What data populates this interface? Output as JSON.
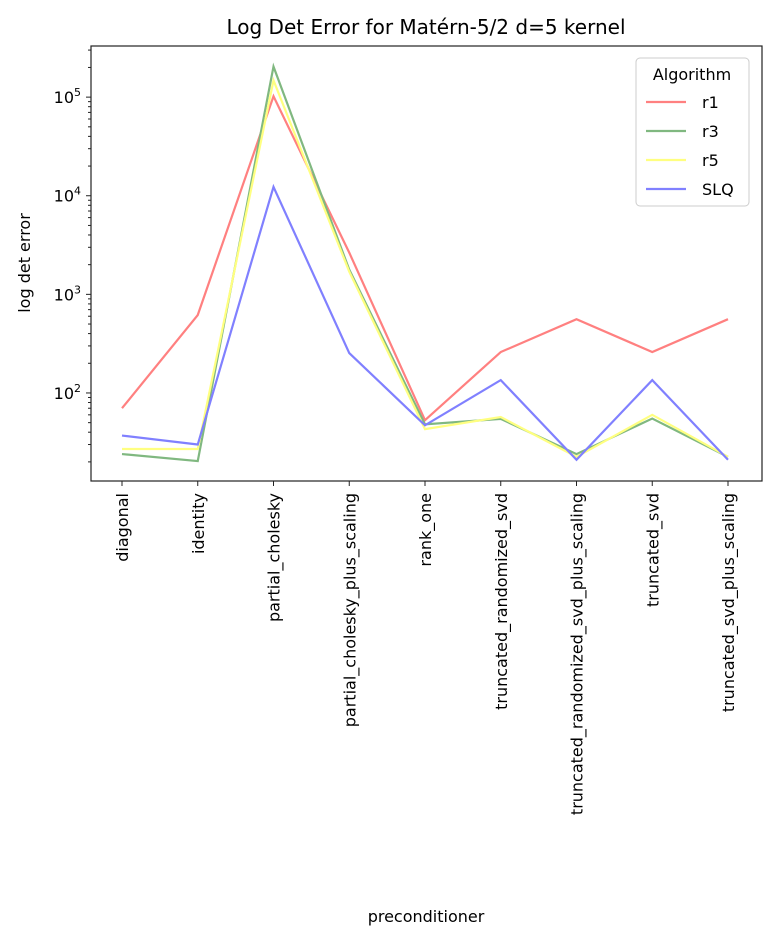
{
  "chart_data": {
    "type": "line",
    "title": "Log Det Error for Matérn-5/2 d=5 kernel",
    "xlabel": "preconditioner",
    "ylabel": "log det error",
    "yscale": "log",
    "ylim": [
      12.8,
      330000
    ],
    "grid": false,
    "legend": {
      "title": "Algorithm",
      "placement": "top-right"
    },
    "categories": [
      "diagonal",
      "identity",
      "partial_cholesky",
      "partial_cholesky_plus_scaling",
      "rank_one",
      "truncated_randomized_svd",
      "truncated_randomized_svd_plus_scaling",
      "truncated_svd",
      "truncated_svd_plus_scaling"
    ],
    "ytick_labels": [
      {
        "value": 100,
        "base": "10",
        "exp": "2"
      },
      {
        "value": 1000,
        "base": "10",
        "exp": "3"
      },
      {
        "value": 10000,
        "base": "10",
        "exp": "4"
      },
      {
        "value": 100000,
        "base": "10",
        "exp": "5"
      }
    ],
    "series": [
      {
        "name": "r1",
        "color": "#ff8080",
        "values": [
          70,
          617,
          102000,
          2650,
          53,
          260,
          560,
          260,
          560
        ]
      },
      {
        "name": "r3",
        "color": "#80b880",
        "values": [
          24,
          20.4,
          204000,
          1780,
          48,
          54.6,
          24,
          55,
          22.5
        ]
      },
      {
        "name": "r5",
        "color": "#ffff80",
        "values": [
          27,
          27,
          148000,
          1700,
          43,
          57,
          22.5,
          60,
          22.5
        ]
      },
      {
        "name": "SLQ",
        "color": "#8080ff",
        "values": [
          37,
          30,
          12300,
          254,
          47,
          135,
          21,
          135,
          21
        ]
      }
    ]
  }
}
